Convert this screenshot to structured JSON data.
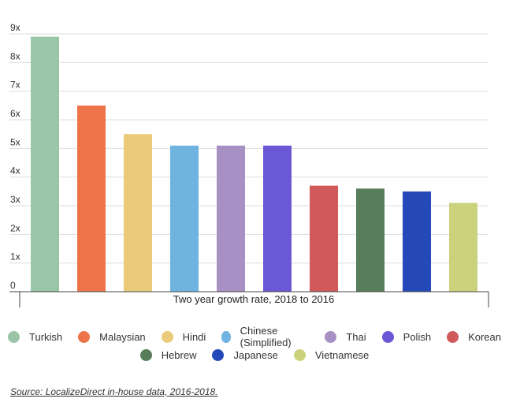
{
  "chart_data": {
    "type": "bar",
    "categories": [
      "Turkish",
      "Malaysian",
      "Hindi",
      "Chinese (Simplified)",
      "Thai",
      "Polish",
      "Korean",
      "Hebrew",
      "Japanese",
      "Vietnamese"
    ],
    "values": [
      8.9,
      6.5,
      5.5,
      5.1,
      5.1,
      5.1,
      3.7,
      3.6,
      3.5,
      3.1
    ],
    "colors": [
      "#9ac5a8",
      "#ec7448",
      "#eacb7a",
      "#6fb3e0",
      "#a791c4",
      "#6a58d6",
      "#d05a5a",
      "#577d5b",
      "#2549b8",
      "#cbd27c"
    ],
    "y_ticks": [
      "0",
      "1x",
      "2x",
      "3x",
      "4x",
      "5x",
      "6x",
      "7x",
      "8x",
      "9x"
    ],
    "ylim": [
      0,
      9
    ],
    "xlabel": "Two year growth rate, 2018 to 2016",
    "ylabel": "",
    "title": "",
    "grid": true,
    "legend_position": "bottom"
  },
  "source": "Source: LocalizeDirect in-house data, 2016-2018."
}
